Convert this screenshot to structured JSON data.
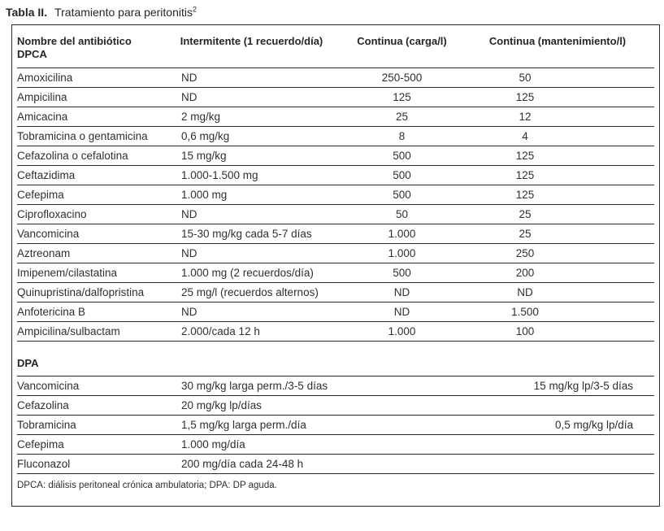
{
  "title": {
    "label": "Tabla II.",
    "text": "Tratamiento para peritonitis",
    "superscript": "2"
  },
  "table": {
    "columns": {
      "c1_line1": "Nombre del antibiótico",
      "c1_line2": "DPCA",
      "c2": "Intermitente (1 recuerdo/día)",
      "c3": "Continua (carga/l)",
      "c4": "Continua (mantenimiento/l)"
    },
    "dpca_rows": [
      [
        "Amoxicilina",
        "ND",
        "250-500",
        "50"
      ],
      [
        "Ampicilina",
        "ND",
        "125",
        "125"
      ],
      [
        "Amicacina",
        "2 mg/kg",
        "25",
        "12"
      ],
      [
        "Tobramicina o gentamicina",
        "0,6 mg/kg",
        "8",
        "4"
      ],
      [
        "Cefazolina o cefalotina",
        "15 mg/kg",
        "500",
        "125"
      ],
      [
        "Ceftazidima",
        "1.000-1.500 mg",
        "500",
        "125"
      ],
      [
        "Cefepima",
        "1.000 mg",
        "500",
        "125"
      ],
      [
        "Ciprofloxacino",
        "ND",
        "50",
        "25"
      ],
      [
        "Vancomicina",
        "15-30 mg/kg cada 5-7 días",
        "1.000",
        "25"
      ],
      [
        "Aztreonam",
        "ND",
        "1.000",
        "250"
      ],
      [
        "Imipenem/cilastatina",
        "1.000 mg (2 recuerdos/día)",
        "500",
        "200"
      ],
      [
        "Quinupristina/dalfopristina",
        "25 mg/l (recuerdos alternos)",
        "ND",
        "ND"
      ],
      [
        "Anfotericina B",
        "ND",
        "ND",
        "1.500"
      ],
      [
        "Ampicilina/sulbactam",
        "2.000/cada 12 h",
        "1.000",
        "100"
      ]
    ],
    "dpa_section_label": "DPA",
    "dpa_rows": [
      [
        "Vancomicina",
        "30 mg/kg larga perm./3-5 días",
        "",
        "15 mg/kg lp/3-5 días"
      ],
      [
        "Cefazolina",
        "20 mg/kg lp/días",
        "",
        ""
      ],
      [
        "Tobramicina",
        "1,5 mg/kg larga perm./día",
        "",
        "0,5 mg/kg lp/día"
      ],
      [
        "Cefepima",
        "1.000 mg/día",
        "",
        ""
      ],
      [
        "Fluconazol",
        "200 mg/día cada 24-48 h",
        "",
        ""
      ]
    ],
    "footnote": "DPCA: diálisis peritoneal crónica ambulatoria; DPA: DP aguda."
  }
}
